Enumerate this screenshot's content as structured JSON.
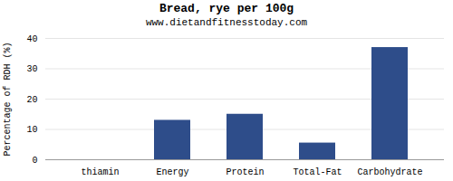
{
  "chart_data": {
    "type": "bar",
    "title": "Bread, rye per 100g",
    "subtitle": "www.dietandfitnesstoday.com",
    "categories": [
      "thiamin",
      "Energy",
      "Protein",
      "Total-Fat",
      "Carbohydrate"
    ],
    "values": [
      0,
      13,
      15,
      5.5,
      37
    ],
    "color": "#2e4d8a",
    "ylabel": "Percentage of RDH (%)",
    "ylim": [
      0,
      40
    ],
    "yticks": [
      0,
      10,
      20,
      30,
      40
    ],
    "grid": true
  }
}
